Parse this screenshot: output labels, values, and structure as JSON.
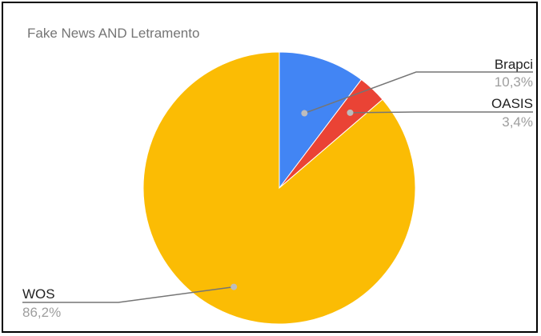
{
  "chart_data": {
    "type": "pie",
    "title": "Fake News AND Letramento",
    "slices": [
      {
        "label": "Brapci",
        "value": 10.3,
        "display": "10,3%",
        "color": "#4285f4"
      },
      {
        "label": "OASIS",
        "value": 3.4,
        "display": "3,4%",
        "color": "#ea4335"
      },
      {
        "label": "WOS",
        "value": 86.2,
        "display": "86,2%",
        "color": "#fbbc04"
      }
    ],
    "start_angle": "12 o'clock",
    "direction": "clockwise",
    "legend": "none",
    "leader_line_color": "#757575"
  }
}
